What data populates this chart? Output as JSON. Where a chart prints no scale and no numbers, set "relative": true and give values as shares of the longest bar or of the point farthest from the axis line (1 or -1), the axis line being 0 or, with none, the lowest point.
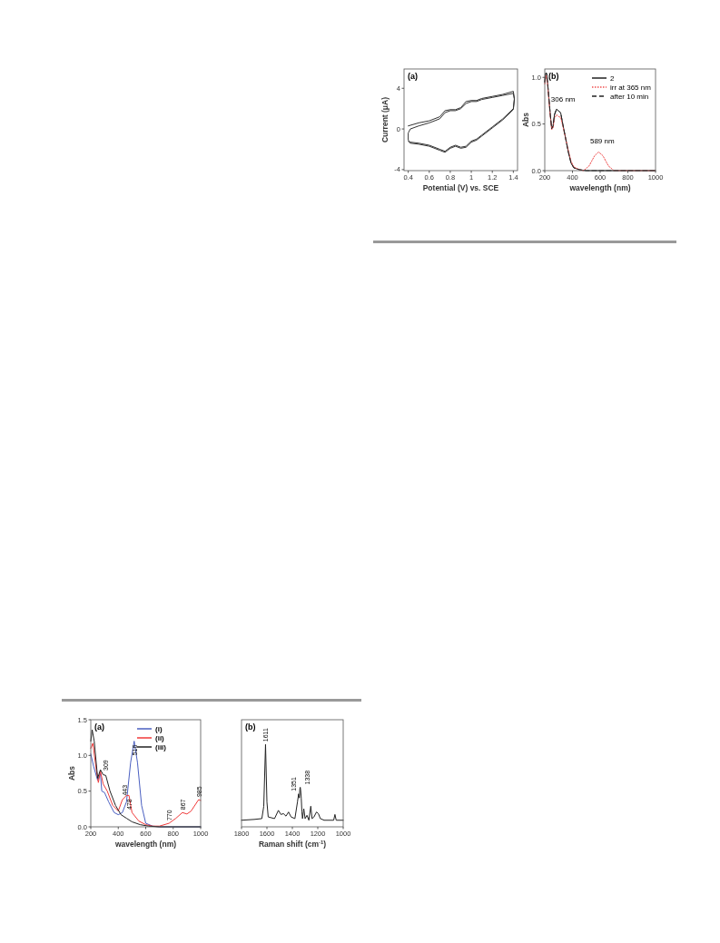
{
  "chart_data": [
    {
      "type": "line",
      "title": "(a)",
      "xlabel": "Potential (V) vs. SCE",
      "ylabel": "Current (μA)",
      "xlim": [
        0.36,
        1.44
      ],
      "ylim": [
        -4.1,
        5.9
      ],
      "xticks": [
        0.4,
        0.6,
        0.8,
        1.0,
        1.2,
        1.4
      ],
      "yticks": [
        -4,
        0,
        4
      ],
      "legend": false,
      "series": [
        {
          "color": "#333333",
          "x": [
            0.4,
            0.5,
            0.6,
            0.7,
            0.75,
            0.8,
            0.85,
            0.9,
            0.95,
            1.0,
            1.05,
            1.1,
            1.2,
            1.3,
            1.4,
            1.41,
            1.4,
            1.3,
            1.2,
            1.1,
            1.05,
            1.0,
            0.95,
            0.9,
            0.85,
            0.8,
            0.75,
            0.7,
            0.6,
            0.5,
            0.42,
            0.4,
            0.4,
            0.42,
            0.5,
            0.6,
            0.7,
            0.75,
            0.8,
            0.85,
            0.9,
            0.95,
            1.0,
            1.05,
            1.1,
            1.2,
            1.3,
            1.4,
            1.41,
            1.4,
            1.3,
            1.2,
            1.1,
            1.05,
            1.0,
            0.95,
            0.9,
            0.85,
            0.8,
            0.75,
            0.7,
            0.6,
            0.5,
            0.42,
            0.4
          ],
          "values": [
            0.3,
            0.6,
            0.8,
            1.2,
            1.8,
            1.9,
            1.9,
            2.1,
            2.7,
            2.8,
            2.8,
            3.0,
            3.2,
            3.4,
            3.7,
            3.0,
            2.0,
            1.0,
            0.2,
            -0.6,
            -1.0,
            -1.2,
            -1.7,
            -1.8,
            -1.6,
            -1.8,
            -2.2,
            -2.0,
            -1.6,
            -1.4,
            -1.3,
            -1.1,
            -0.4,
            0.0,
            0.3,
            0.6,
            1.0,
            1.6,
            1.8,
            1.8,
            2.0,
            2.5,
            2.7,
            2.7,
            2.9,
            3.1,
            3.3,
            3.5,
            2.9,
            1.9,
            0.9,
            0.1,
            -0.7,
            -1.1,
            -1.3,
            -1.8,
            -1.9,
            -1.7,
            -1.9,
            -2.3,
            -2.1,
            -1.7,
            -1.5,
            -1.4,
            -1.2
          ]
        }
      ]
    },
    {
      "type": "line",
      "title": "(b)",
      "xlabel": "wavelength (nm)",
      "ylabel": "Abs",
      "xlim": [
        200,
        1000
      ],
      "ylim": [
        0,
        1.09
      ],
      "xticks": [
        200,
        400,
        600,
        800,
        1000
      ],
      "yticks": [
        {
          "value": 0,
          "label": "0.0"
        },
        {
          "value": 0.5,
          "label": "0.5"
        },
        {
          "value": 1,
          "label": "1.0"
        }
      ],
      "legend": "top right",
      "annotations": [
        {
          "text": "306 nm",
          "x": 306,
          "y": 0.65
        },
        {
          "text": "589 nm",
          "x": 589,
          "y": 0.2
        }
      ],
      "series": [
        {
          "name": "2",
          "color": "#222222",
          "line_style": "solid",
          "x": [
            200,
            205,
            210,
            215,
            220,
            240,
            250,
            260,
            270,
            285,
            300,
            315,
            330,
            350,
            370,
            390,
            410,
            450,
            500,
            600,
            1000
          ],
          "values": [
            0.95,
            1.03,
            1.05,
            1.03,
            0.95,
            0.6,
            0.45,
            0.48,
            0.6,
            0.66,
            0.64,
            0.62,
            0.5,
            0.35,
            0.2,
            0.08,
            0.03,
            0.01,
            0,
            0,
            0
          ]
        },
        {
          "name": "irr at 365 nm",
          "color": "#f05050",
          "line_style": "dotted",
          "x": [
            200,
            210,
            220,
            240,
            250,
            260,
            270,
            285,
            300,
            315,
            330,
            350,
            370,
            390,
            410,
            450,
            480,
            520,
            560,
            589,
            620,
            660,
            700,
            1000
          ],
          "values": [
            0.93,
            1.02,
            0.93,
            0.58,
            0.44,
            0.46,
            0.56,
            0.6,
            0.58,
            0.57,
            0.48,
            0.35,
            0.22,
            0.1,
            0.04,
            0.01,
            0,
            0.05,
            0.16,
            0.2,
            0.16,
            0.05,
            0,
            0
          ]
        },
        {
          "name": "after 10 min",
          "color": "#222222",
          "line_style": "dashed",
          "x": [
            200,
            205,
            210,
            215,
            220,
            240,
            250,
            260,
            270,
            285,
            300,
            315,
            330,
            350,
            370,
            390,
            410,
            450,
            500,
            600,
            1000
          ],
          "values": [
            0.95,
            1.03,
            1.05,
            1.03,
            0.95,
            0.6,
            0.45,
            0.48,
            0.6,
            0.66,
            0.64,
            0.62,
            0.5,
            0.35,
            0.2,
            0.08,
            0.03,
            0.01,
            0,
            0,
            0
          ]
        }
      ]
    },
    {
      "type": "line",
      "title": "(a)",
      "xlabel": "wavelength (nm)",
      "ylabel": "Abs",
      "xlim": [
        200,
        1000
      ],
      "ylim": [
        0,
        1.5
      ],
      "xticks": [
        200,
        400,
        600,
        800,
        1000
      ],
      "yticks": [
        {
          "value": 0,
          "label": "0.0"
        },
        {
          "value": 0.5,
          "label": "0.5"
        },
        {
          "value": 1,
          "label": "1.0"
        },
        {
          "value": 1.5,
          "label": "1.5"
        }
      ],
      "legend": "top right",
      "annotations": [
        {
          "text": "309",
          "x": 309,
          "y": 0.75
        },
        {
          "text": "443",
          "x": 443,
          "y": 0.4
        },
        {
          "text": "478",
          "x": 478,
          "y": 0.44
        },
        {
          "text": "516",
          "x": 516,
          "y": 1.2
        },
        {
          "text": "770",
          "x": 770,
          "y": 0.05
        },
        {
          "text": "867",
          "x": 867,
          "y": 0.2
        },
        {
          "text": "985",
          "x": 985,
          "y": 0.38
        }
      ],
      "series": [
        {
          "name": "(i)",
          "color": "#4a5fc1",
          "x": [
            200,
            220,
            250,
            270,
            280,
            300,
            330,
            370,
            400,
            430,
            460,
            490,
            516,
            540,
            570,
            600,
            650,
            700,
            1000
          ],
          "values": [
            1.02,
            0.85,
            0.65,
            0.75,
            0.5,
            0.48,
            0.35,
            0.2,
            0.17,
            0.2,
            0.35,
            0.9,
            1.2,
            0.9,
            0.3,
            0.05,
            0.01,
            0,
            0
          ]
        },
        {
          "name": "(ii)",
          "color": "#f03a3a",
          "x": [
            200,
            215,
            240,
            255,
            270,
            290,
            320,
            360,
            400,
            430,
            460,
            478,
            500,
            550,
            600,
            650,
            700,
            770,
            820,
            867,
            900,
            930,
            985,
            1000
          ],
          "values": [
            1.1,
            1.17,
            0.8,
            0.62,
            0.78,
            0.6,
            0.5,
            0.3,
            0.22,
            0.38,
            0.44,
            0.44,
            0.2,
            0.08,
            0.03,
            0.01,
            0.01,
            0.05,
            0.12,
            0.2,
            0.18,
            0.22,
            0.38,
            0.37
          ]
        },
        {
          "name": "(iii)",
          "color": "#222222",
          "x": [
            200,
            210,
            225,
            250,
            270,
            290,
            309,
            340,
            380,
            420,
            460,
            500,
            560,
            620,
            700,
            1000
          ],
          "values": [
            1.2,
            1.36,
            1.2,
            0.68,
            0.8,
            0.73,
            0.72,
            0.5,
            0.3,
            0.17,
            0.12,
            0.07,
            0.03,
            0.01,
            0,
            0
          ]
        }
      ]
    },
    {
      "type": "line",
      "title": "(b)",
      "xlabel": "Raman shift (cm$^{-1}$)",
      "relative": true,
      "xlim": [
        1800,
        1000
      ],
      "xticks": [
        1800,
        1600,
        1400,
        1200,
        1000
      ],
      "legend": false,
      "annotations": [
        {
          "text": "1611",
          "x": 1611,
          "y": 1.0
        },
        {
          "text": "1351",
          "x": 1351,
          "y": 0.4
        },
        {
          "text": "1338",
          "x": 1338,
          "y": 0.48
        }
      ],
      "series": [
        {
          "color": "#222222",
          "x": [
            1800,
            1700,
            1640,
            1625,
            1611,
            1600,
            1590,
            1540,
            1510,
            1490,
            1470,
            1450,
            1430,
            1410,
            1380,
            1360,
            1351,
            1345,
            1341,
            1338,
            1335,
            1330,
            1325,
            1320,
            1310,
            1300,
            1285,
            1270,
            1255,
            1245,
            1230,
            1210,
            1195,
            1180,
            1150,
            1100,
            1075,
            1065,
            1055,
            1000
          ],
          "values": [
            0.08,
            0.09,
            0.1,
            0.25,
            1.0,
            0.3,
            0.12,
            0.1,
            0.2,
            0.15,
            0.16,
            0.13,
            0.18,
            0.12,
            0.1,
            0.3,
            0.4,
            0.35,
            0.46,
            0.48,
            0.45,
            0.35,
            0.18,
            0.1,
            0.22,
            0.1,
            0.14,
            0.08,
            0.25,
            0.1,
            0.12,
            0.18,
            0.16,
            0.1,
            0.08,
            0.08,
            0.08,
            0.15,
            0.08,
            0.08
          ]
        }
      ]
    }
  ]
}
